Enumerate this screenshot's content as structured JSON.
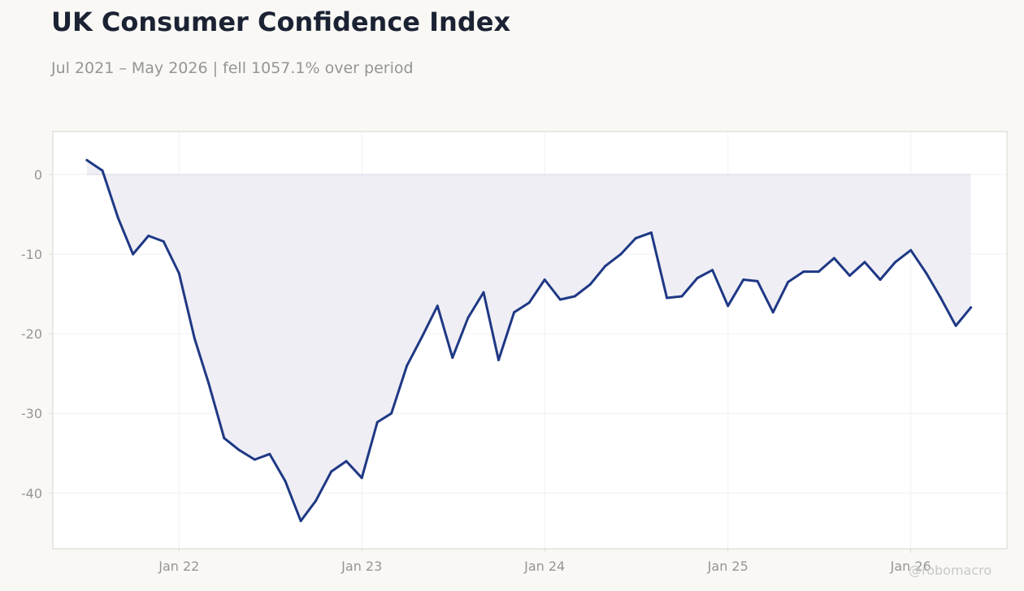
{
  "title": "UK Consumer Confidence Index",
  "subtitle": "Jul 2021 – May 2026 | fell 1057.1% over period",
  "watermark": "@robomacro",
  "colors": {
    "line": "#1f3885",
    "fill": "#eeeef4",
    "baseline": "#dcdde9",
    "grid": "#f0f0f3",
    "frame": "#dddcd5",
    "tick_text": "#959595",
    "background": "#f9f8f5",
    "plot_background": "#ffffff"
  },
  "chart_data": {
    "type": "area",
    "title": "UK Consumer Confidence Index",
    "xlabel": "",
    "ylabel": "",
    "ylim": [
      -47,
      5.4
    ],
    "xlim": [
      "2021-04-24",
      "2026-07-12"
    ],
    "grid": true,
    "y_ticks": [
      0,
      -10,
      -20,
      -30,
      -40
    ],
    "x_ticks": [
      {
        "date": "2022-01-01",
        "label": "Jan 22"
      },
      {
        "date": "2023-01-01",
        "label": "Jan 23"
      },
      {
        "date": "2024-01-01",
        "label": "Jan 24"
      },
      {
        "date": "2025-01-01",
        "label": "Jan 25"
      },
      {
        "date": "2026-01-01",
        "label": "Jan 26"
      }
    ],
    "x": [
      "2021-07-01",
      "2021-08-01",
      "2021-09-01",
      "2021-10-01",
      "2021-11-01",
      "2021-12-01",
      "2022-01-01",
      "2022-02-01",
      "2022-03-01",
      "2022-04-01",
      "2022-05-01",
      "2022-06-01",
      "2022-07-01",
      "2022-08-01",
      "2022-09-01",
      "2022-10-01",
      "2022-11-01",
      "2022-12-01",
      "2023-01-01",
      "2023-02-01",
      "2023-03-01",
      "2023-04-01",
      "2023-05-01",
      "2023-06-01",
      "2023-07-01",
      "2023-08-01",
      "2023-09-01",
      "2023-10-01",
      "2023-11-01",
      "2023-12-01",
      "2024-01-01",
      "2024-02-01",
      "2024-03-01",
      "2024-04-01",
      "2024-05-01",
      "2024-06-01",
      "2024-07-01",
      "2024-08-01",
      "2024-09-01",
      "2024-10-01",
      "2024-11-01",
      "2024-12-01",
      "2025-01-01",
      "2025-02-01",
      "2025-03-01",
      "2025-04-01",
      "2025-05-01",
      "2025-06-01",
      "2025-07-01",
      "2025-08-01",
      "2025-09-01",
      "2025-10-01",
      "2025-11-01",
      "2025-12-01",
      "2026-01-01",
      "2026-02-01",
      "2026-03-01",
      "2026-04-01",
      "2026-05-01"
    ],
    "series": [
      {
        "values": [
          1.8,
          0.5,
          -5.4,
          -10.0,
          -7.7,
          -8.4,
          -12.4,
          -20.6,
          -26.2,
          -33.1,
          -34.6,
          -35.8,
          -35.1,
          -38.5,
          -43.5,
          -41.0,
          -37.3,
          -36.0,
          -38.1,
          -31.1,
          -30.0,
          -24.0,
          -20.4,
          -16.5,
          -23.0,
          -18.0,
          -14.8,
          -23.3,
          -17.3,
          -16.1,
          -13.2,
          -15.7,
          -15.3,
          -13.8,
          -11.5,
          -10.0,
          -8.0,
          -7.3,
          -15.5,
          -15.3,
          -13.0,
          -12.0,
          -16.5,
          -13.2,
          -13.4,
          -17.3,
          -13.5,
          -12.2,
          -12.2,
          -10.5,
          -12.7,
          -11.0,
          -13.2,
          -11.0,
          -9.5,
          -12.4,
          -15.4,
          -19.0,
          -16.7
        ]
      }
    ]
  }
}
